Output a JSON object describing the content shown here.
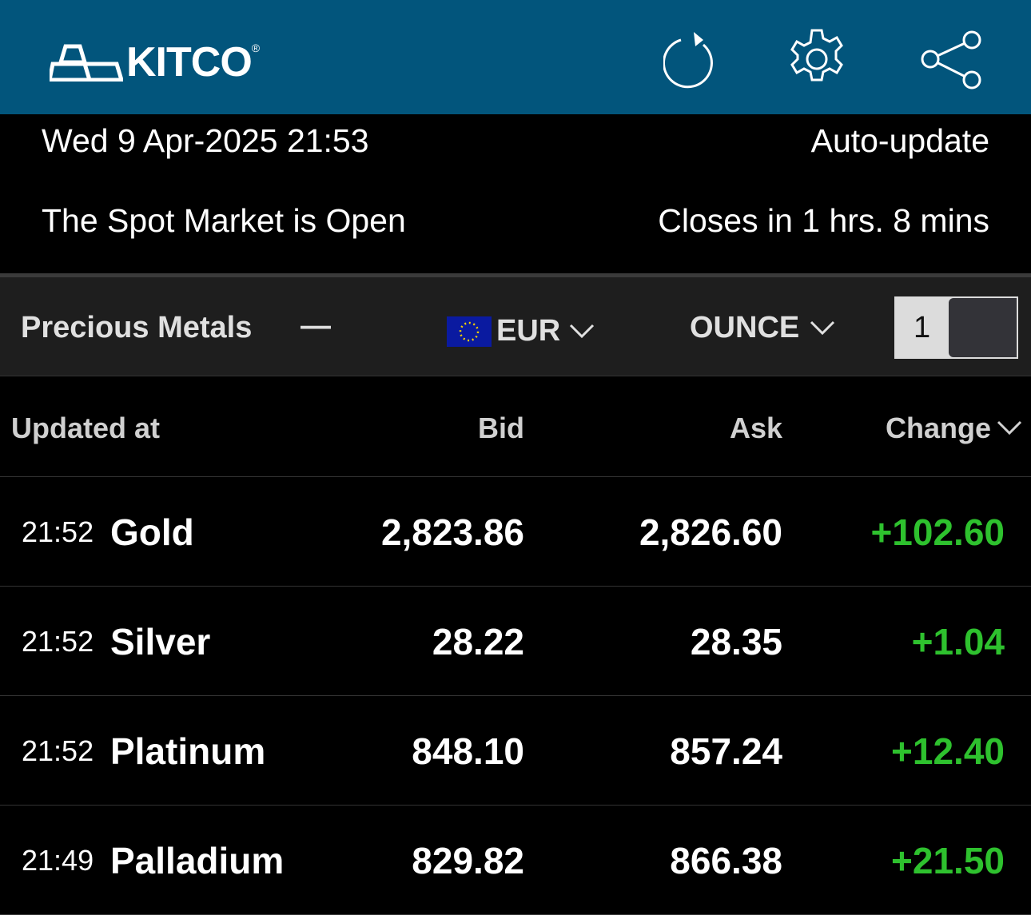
{
  "header": {
    "logo": "KITCO",
    "icons": [
      "refresh-icon",
      "gear-icon",
      "share-icon"
    ]
  },
  "info": {
    "datetime": "Wed 9 Apr-2025 21:53",
    "auto_update": "Auto-update",
    "market_status": "The Spot Market is Open",
    "closes_in": "Closes in 1 hrs. 8 mins"
  },
  "toolbar": {
    "category": "Precious Metals",
    "collapse": "—",
    "currency": "EUR",
    "unit": "OUNCE",
    "toggle_value": "1"
  },
  "columns": {
    "updated": "Updated at",
    "bid": "Bid",
    "ask": "Ask",
    "change": "Change"
  },
  "colors": {
    "header": "#02557c",
    "positive": "#2ec12e"
  },
  "rows": [
    {
      "time": "21:52",
      "name": "Gold",
      "bid": "2,823.86",
      "ask": "2,826.60",
      "change": "+102.60"
    },
    {
      "time": "21:52",
      "name": "Silver",
      "bid": "28.22",
      "ask": "28.35",
      "change": "+1.04"
    },
    {
      "time": "21:52",
      "name": "Platinum",
      "bid": "848.10",
      "ask": "857.24",
      "change": "+12.40"
    },
    {
      "time": "21:49",
      "name": "Palladium",
      "bid": "829.82",
      "ask": "866.38",
      "change": "+21.50"
    }
  ]
}
